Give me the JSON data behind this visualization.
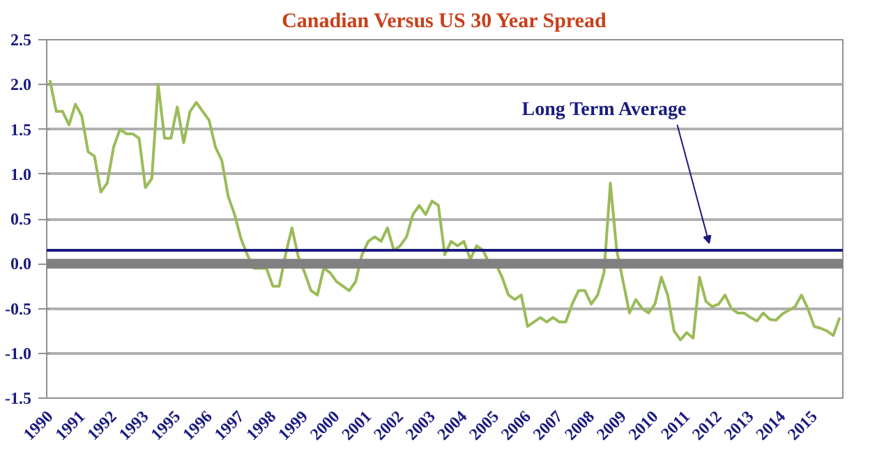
{
  "chart_data": {
    "type": "line",
    "title": "Canadian Versus US 30 Year Spread",
    "categories": [
      "1990",
      null,
      null,
      null,
      null,
      "1991",
      null,
      null,
      null,
      null,
      "1992",
      null,
      null,
      null,
      null,
      "1993",
      null,
      null,
      null,
      null,
      "1995",
      null,
      null,
      null,
      null,
      "1996",
      null,
      null,
      null,
      null,
      "1997",
      null,
      null,
      null,
      null,
      "1998",
      null,
      null,
      null,
      null,
      "1999",
      null,
      null,
      null,
      null,
      "2000",
      null,
      null,
      null,
      null,
      "2001",
      null,
      null,
      null,
      null,
      "2002",
      null,
      null,
      null,
      null,
      "2003",
      null,
      null,
      null,
      null,
      "2004",
      null,
      null,
      null,
      null,
      "2005",
      null,
      null,
      null,
      null,
      "2006",
      null,
      null,
      null,
      null,
      "2007",
      null,
      null,
      null,
      null,
      "2008",
      null,
      null,
      null,
      null,
      "2009",
      null,
      null,
      null,
      null,
      "2010",
      null,
      null,
      null,
      null,
      "2011",
      null,
      null,
      null,
      null,
      "2012",
      null,
      null,
      null,
      null,
      "2013",
      null,
      null,
      null,
      null,
      "2014",
      null,
      null,
      null,
      null,
      "2015",
      null,
      null,
      null,
      null
    ],
    "ylim": [
      -1.5,
      2.5
    ],
    "yticks": [
      {
        "value": -1.5,
        "label": "-1.5"
      },
      {
        "value": -1,
        "label": "-1.0"
      },
      {
        "value": -0.5,
        "label": "-0.5"
      },
      {
        "value": 0,
        "label": "0.0"
      },
      {
        "value": 0.5,
        "label": "0.5"
      },
      {
        "value": 1,
        "label": "1.0"
      },
      {
        "value": 1.5,
        "label": "1.5"
      },
      {
        "value": 2,
        "label": "2.0"
      },
      {
        "value": 2.5,
        "label": "2.5"
      }
    ],
    "grid": "y",
    "marker": "none",
    "line_style": "solid",
    "series": [
      {
        "color": "#9bbb59",
        "values": [
          2.05,
          1.7,
          1.7,
          1.55,
          1.78,
          1.65,
          1.25,
          1.2,
          0.8,
          0.9,
          1.3,
          1.5,
          1.45,
          1.45,
          1.4,
          0.85,
          0.95,
          2.0,
          1.4,
          1.4,
          1.75,
          1.35,
          1.7,
          1.8,
          1.7,
          1.6,
          1.3,
          1.15,
          0.75,
          0.55,
          0.28,
          0.1,
          -0.05,
          -0.05,
          -0.05,
          -0.25,
          -0.25,
          0.1,
          0.4,
          0.08,
          -0.1,
          -0.3,
          -0.35,
          -0.05,
          -0.1,
          -0.2,
          -0.25,
          -0.3,
          -0.2,
          0.1,
          0.25,
          0.3,
          0.25,
          0.4,
          0.15,
          0.2,
          0.3,
          0.55,
          0.65,
          0.55,
          0.7,
          0.65,
          0.1,
          0.25,
          0.2,
          0.25,
          0.05,
          0.2,
          0.15,
          0.0,
          0.0,
          -0.15,
          -0.35,
          -0.4,
          -0.35,
          -0.7,
          -0.65,
          -0.6,
          -0.65,
          -0.6,
          -0.65,
          -0.65,
          -0.45,
          -0.3,
          -0.3,
          -0.45,
          -0.35,
          -0.1,
          0.9,
          0.15,
          -0.2,
          -0.55,
          -0.4,
          -0.5,
          -0.55,
          -0.45,
          -0.15,
          -0.35,
          -0.75,
          -0.85,
          -0.77,
          -0.83,
          -0.15,
          -0.42,
          -0.48,
          -0.45,
          -0.35,
          -0.5,
          -0.55,
          -0.55,
          -0.6,
          -0.64,
          -0.55,
          -0.62,
          -0.63,
          -0.56,
          -0.52,
          -0.48,
          -0.35,
          -0.5,
          -0.7,
          -0.72,
          -0.75,
          -0.8,
          -0.6
        ]
      }
    ],
    "ref_lines": [
      {
        "axis": "y",
        "value": 0,
        "color": "#808080"
      },
      {
        "axis": "y",
        "value": 0.15,
        "color": "#1a1a80",
        "label": "Long  Term Average"
      }
    ]
  }
}
